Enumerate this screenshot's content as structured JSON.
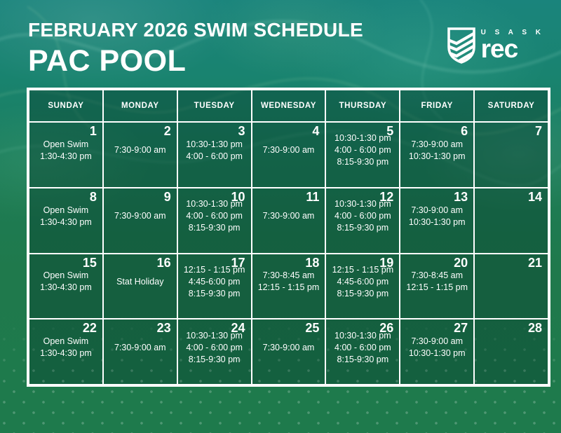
{
  "header": {
    "title": "FEBRUARY 2026 SWIM SCHEDULE",
    "pool_name": "PAC POOL"
  },
  "logo": {
    "org": "U S A S K",
    "brand": "rec",
    "icon": "usask-shield-icon"
  },
  "calendar": {
    "weekday_headers": [
      "SUNDAY",
      "MONDAY",
      "TUESDAY",
      "WEDNESDAY",
      "THURSDAY",
      "FRIDAY",
      "SATURDAY"
    ],
    "weeks": [
      [
        {
          "day": "1",
          "lines": [
            "Open Swim",
            "1:30-4:30 pm"
          ]
        },
        {
          "day": "2",
          "lines": [
            "7:30-9:00 am"
          ]
        },
        {
          "day": "3",
          "lines": [
            "10:30-1:30 pm",
            "4:00 - 6:00 pm"
          ]
        },
        {
          "day": "4",
          "lines": [
            "7:30-9:00 am"
          ]
        },
        {
          "day": "5",
          "lines": [
            "10:30-1:30 pm",
            "4:00 - 6:00 pm",
            "8:15-9:30 pm"
          ]
        },
        {
          "day": "6",
          "lines": [
            "7:30-9:00 am",
            "10:30-1:30 pm"
          ]
        },
        {
          "day": "7",
          "lines": []
        }
      ],
      [
        {
          "day": "8",
          "lines": [
            "Open Swim",
            "1:30-4:30 pm"
          ]
        },
        {
          "day": "9",
          "lines": [
            "7:30-9:00 am"
          ]
        },
        {
          "day": "10",
          "lines": [
            "10:30-1:30 pm",
            "4:00 - 6:00 pm",
            "8:15-9:30 pm"
          ]
        },
        {
          "day": "11",
          "lines": [
            "7:30-9:00 am"
          ]
        },
        {
          "day": "12",
          "lines": [
            "10:30-1:30 pm",
            "4:00 - 6:00 pm",
            "8:15-9:30 pm"
          ]
        },
        {
          "day": "13",
          "lines": [
            "7:30-9:00 am",
            "10:30-1:30 pm"
          ]
        },
        {
          "day": "14",
          "lines": []
        }
      ],
      [
        {
          "day": "15",
          "lines": [
            "Open Swim",
            "1:30-4:30 pm"
          ]
        },
        {
          "day": "16",
          "lines": [
            "Stat Holiday"
          ]
        },
        {
          "day": "17",
          "lines": [
            "12:15 - 1:15 pm",
            "4:45-6:00 pm",
            "8:15-9:30 pm"
          ]
        },
        {
          "day": "18",
          "lines": [
            "7:30-8:45 am",
            "12:15 - 1:15 pm"
          ]
        },
        {
          "day": "19",
          "lines": [
            "12:15 - 1:15 pm",
            "4:45-6:00 pm",
            "8:15-9:30 pm"
          ]
        },
        {
          "day": "20",
          "lines": [
            "7:30-8:45 am",
            "12:15 - 1:15 pm"
          ]
        },
        {
          "day": "21",
          "lines": []
        }
      ],
      [
        {
          "day": "22",
          "lines": [
            "Open Swim",
            "1:30-4:30 pm"
          ]
        },
        {
          "day": "23",
          "lines": [
            "7:30-9:00 am"
          ]
        },
        {
          "day": "24",
          "lines": [
            "10:30-1:30 pm",
            "4:00 - 6:00 pm",
            "8:15-9:30 pm"
          ]
        },
        {
          "day": "25",
          "lines": [
            "7:30-9:00 am"
          ]
        },
        {
          "day": "26",
          "lines": [
            "10:30-1:30 pm",
            "4:00 - 6:00 pm",
            "8:15-9:30 pm"
          ]
        },
        {
          "day": "27",
          "lines": [
            "7:30-9:00 am",
            "10:30-1:30 pm"
          ]
        },
        {
          "day": "28",
          "lines": []
        }
      ]
    ]
  },
  "colors": {
    "background_top_teal": "#1a847c",
    "background_bottom_green": "#1e7a4c",
    "cell_overlay": "rgba(8,60,45,0.42)",
    "grid_line": "#ffffff",
    "text": "#ffffff"
  }
}
